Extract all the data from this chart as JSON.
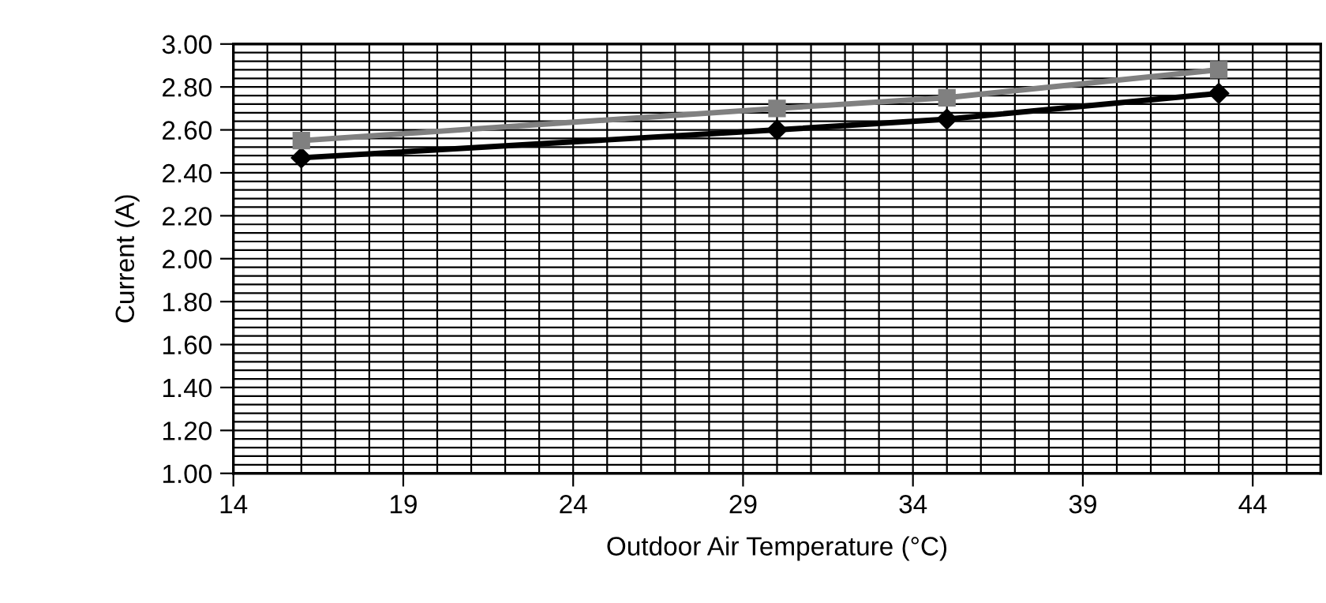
{
  "chart_data": {
    "type": "line",
    "xlabel": "Outdoor Air Temperature (°C)",
    "ylabel": "Current (A)",
    "x": [
      16,
      30,
      35,
      43
    ],
    "series": [
      {
        "color": "#000000",
        "marker": "diamond",
        "values": [
          2.47,
          2.6,
          2.65,
          2.77
        ]
      },
      {
        "color": "#808080",
        "marker": "square",
        "values": [
          2.55,
          2.7,
          2.75,
          2.88
        ]
      }
    ],
    "xlim": [
      14,
      46
    ],
    "xticks": [
      14,
      {
        "value": 15,
        "label": null
      },
      {
        "value": 16,
        "label": null
      },
      {
        "value": 17,
        "label": null
      },
      {
        "value": 18,
        "label": null
      },
      19,
      {
        "value": 20,
        "label": null
      },
      {
        "value": 21,
        "label": null
      },
      {
        "value": 22,
        "label": null
      },
      {
        "value": 23,
        "label": null
      },
      24,
      {
        "value": 25,
        "label": null
      },
      {
        "value": 26,
        "label": null
      },
      {
        "value": 27,
        "label": null
      },
      {
        "value": 28,
        "label": null
      },
      29,
      {
        "value": 30,
        "label": null
      },
      {
        "value": 31,
        "label": null
      },
      {
        "value": 32,
        "label": null
      },
      {
        "value": 33,
        "label": null
      },
      34,
      {
        "value": 35,
        "label": null
      },
      {
        "value": 36,
        "label": null
      },
      {
        "value": 37,
        "label": null
      },
      {
        "value": 38,
        "label": null
      },
      39,
      {
        "value": 40,
        "label": null
      },
      {
        "value": 41,
        "label": null
      },
      {
        "value": 42,
        "label": null
      },
      {
        "value": 43,
        "label": null
      },
      44,
      {
        "value": 45,
        "label": null
      },
      {
        "value": 46,
        "label": null
      }
    ],
    "ylim": [
      1.0,
      3.0
    ],
    "yticks": [
      {
        "value": 1.0,
        "label": "1.00"
      },
      {
        "value": 1.04,
        "label": null
      },
      {
        "value": 1.08,
        "label": null
      },
      {
        "value": 1.12,
        "label": null
      },
      {
        "value": 1.16,
        "label": null
      },
      {
        "value": 1.2,
        "label": "1.20"
      },
      {
        "value": 1.24,
        "label": null
      },
      {
        "value": 1.28,
        "label": null
      },
      {
        "value": 1.32,
        "label": null
      },
      {
        "value": 1.36,
        "label": null
      },
      {
        "value": 1.4,
        "label": "1.40"
      },
      {
        "value": 1.44,
        "label": null
      },
      {
        "value": 1.48,
        "label": null
      },
      {
        "value": 1.52,
        "label": null
      },
      {
        "value": 1.56,
        "label": null
      },
      {
        "value": 1.6,
        "label": "1.60"
      },
      {
        "value": 1.64,
        "label": null
      },
      {
        "value": 1.68,
        "label": null
      },
      {
        "value": 1.72,
        "label": null
      },
      {
        "value": 1.76,
        "label": null
      },
      {
        "value": 1.8,
        "label": "1.80"
      },
      {
        "value": 1.84,
        "label": null
      },
      {
        "value": 1.88,
        "label": null
      },
      {
        "value": 1.92,
        "label": null
      },
      {
        "value": 1.96,
        "label": null
      },
      {
        "value": 2.0,
        "label": "2.00"
      },
      {
        "value": 2.04,
        "label": null
      },
      {
        "value": 2.08,
        "label": null
      },
      {
        "value": 2.12,
        "label": null
      },
      {
        "value": 2.16,
        "label": null
      },
      {
        "value": 2.2,
        "label": "2.20"
      },
      {
        "value": 2.24,
        "label": null
      },
      {
        "value": 2.28,
        "label": null
      },
      {
        "value": 2.32,
        "label": null
      },
      {
        "value": 2.36,
        "label": null
      },
      {
        "value": 2.4,
        "label": "2.40"
      },
      {
        "value": 2.44,
        "label": null
      },
      {
        "value": 2.48,
        "label": null
      },
      {
        "value": 2.52,
        "label": null
      },
      {
        "value": 2.56,
        "label": null
      },
      {
        "value": 2.6,
        "label": "2.60"
      },
      {
        "value": 2.64,
        "label": null
      },
      {
        "value": 2.68,
        "label": null
      },
      {
        "value": 2.72,
        "label": null
      },
      {
        "value": 2.76,
        "label": null
      },
      {
        "value": 2.8,
        "label": "2.80"
      },
      {
        "value": 2.84,
        "label": null
      },
      {
        "value": 2.88,
        "label": null
      },
      {
        "value": 2.92,
        "label": null
      },
      {
        "value": 2.96,
        "label": null
      },
      {
        "value": 3.0,
        "label": "3.00"
      }
    ],
    "grid": true
  }
}
